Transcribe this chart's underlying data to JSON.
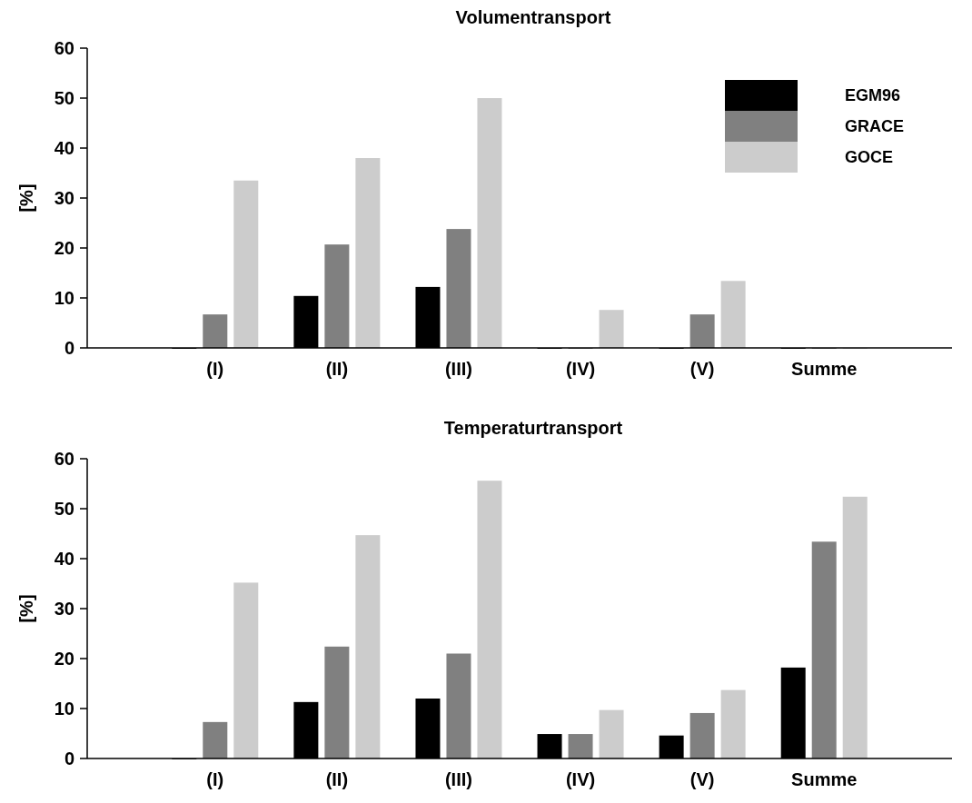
{
  "chart_data": [
    {
      "type": "bar",
      "title": "Volumentransport",
      "ylabel": "[%]",
      "categories": [
        "(I)",
        "(II)",
        "(III)",
        "(IV)",
        "(V)",
        "Summe"
      ],
      "ylim": [
        0,
        60
      ],
      "yticks": [
        0,
        10,
        20,
        30,
        40,
        50,
        60
      ],
      "grid": false,
      "legend": "top right",
      "series": [
        {
          "name": "EGM96",
          "color": "#000000",
          "values": [
            0,
            10.4,
            12.2,
            0,
            0,
            0
          ]
        },
        {
          "name": "GRACE",
          "color": "#808080",
          "values": [
            6.7,
            20.7,
            23.8,
            0,
            6.7,
            0
          ]
        },
        {
          "name": "GOCE",
          "color": "#cccccc",
          "values": [
            33.5,
            38,
            50,
            7.6,
            13.4,
            0
          ]
        }
      ]
    },
    {
      "type": "bar",
      "title": "Temperaturtransport",
      "ylabel": "[%]",
      "categories": [
        "(I)",
        "(II)",
        "(III)",
        "(IV)",
        "(V)",
        "Summe"
      ],
      "ylim": [
        0,
        60
      ],
      "yticks": [
        0,
        10,
        20,
        30,
        40,
        50,
        60
      ],
      "grid": false,
      "legend": false,
      "series": [
        {
          "color": "#000000",
          "values": [
            0,
            11.3,
            12,
            4.9,
            4.6,
            18.2
          ]
        },
        {
          "color": "#808080",
          "values": [
            7.3,
            22.4,
            21,
            4.9,
            9.1,
            43.4
          ]
        },
        {
          "color": "#cccccc",
          "values": [
            35.2,
            44.7,
            55.6,
            9.7,
            13.7,
            52.4
          ]
        }
      ]
    }
  ]
}
